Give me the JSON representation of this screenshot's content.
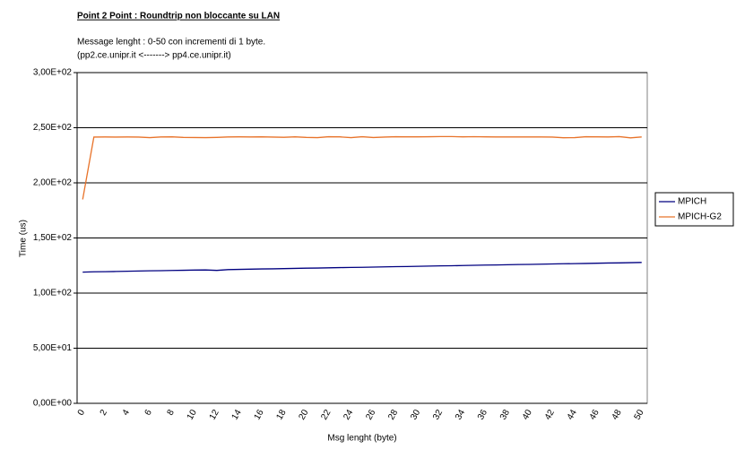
{
  "chart_data": {
    "type": "line",
    "title": "Point 2 Point  :  Roundtrip non bloccante su LAN",
    "subtitle": [
      "Message lenght :  0-50 con incrementi di 1 byte.",
      "(pp2.ce.unipr.it    <------->  pp4.ce.unipr.it)"
    ],
    "x_label": "Msg lenght (byte)",
    "y_label": "Time (us)",
    "categories": [
      0,
      null,
      2,
      null,
      4,
      null,
      6,
      null,
      8,
      null,
      10,
      null,
      12,
      null,
      14,
      null,
      16,
      null,
      18,
      null,
      20,
      null,
      22,
      null,
      24,
      null,
      26,
      null,
      28,
      null,
      30,
      null,
      32,
      null,
      34,
      null,
      36,
      null,
      38,
      null,
      40,
      null,
      42,
      null,
      44,
      null,
      46,
      null,
      48,
      null,
      50
    ],
    "series": [
      {
        "name": "MPICH",
        "color": "#000080",
        "values": [
          119.0,
          119.3,
          119.4,
          119.6,
          119.8,
          120.0,
          120.2,
          120.3,
          120.5,
          120.7,
          120.9,
          121.0,
          120.6,
          121.3,
          121.5,
          121.7,
          121.9,
          122.0,
          122.2,
          122.4,
          122.6,
          122.7,
          122.9,
          123.1,
          123.3,
          123.4,
          123.6,
          123.8,
          124.0,
          124.1,
          124.3,
          124.5,
          124.7,
          124.8,
          125.0,
          125.2,
          125.4,
          125.5,
          125.7,
          125.9,
          126.0,
          126.2,
          126.4,
          126.6,
          126.7,
          126.9,
          127.1,
          127.3,
          127.4,
          127.6,
          127.8
        ]
      },
      {
        "name": "MPICH-G2",
        "color": "#e8732a",
        "values": [
          185.0,
          241.5,
          241.6,
          241.5,
          241.6,
          241.5,
          241.0,
          241.6,
          241.7,
          241.2,
          241.1,
          241.0,
          241.2,
          241.6,
          241.7,
          241.6,
          241.7,
          241.5,
          241.3,
          241.7,
          241.2,
          241.0,
          241.8,
          241.7,
          241.0,
          241.8,
          241.1,
          241.5,
          241.8,
          241.7,
          241.7,
          241.8,
          242.0,
          242.0,
          241.7,
          241.9,
          241.7,
          241.6,
          241.6,
          241.6,
          241.6,
          241.6,
          241.5,
          240.9,
          241.0,
          241.8,
          241.7,
          241.6,
          241.9,
          240.8,
          241.6
        ]
      }
    ],
    "ylim": [
      0,
      300
    ],
    "yticks": [
      {
        "value": 0,
        "label": "0,00E+00"
      },
      {
        "value": 50,
        "label": "5,00E+01"
      },
      {
        "value": 100,
        "label": "1,00E+02"
      },
      {
        "value": 150,
        "label": "1,50E+02"
      },
      {
        "value": 200,
        "label": "2,00E+02"
      },
      {
        "value": 250,
        "label": "2,50E+02"
      },
      {
        "value": 300,
        "label": "3,00E+02"
      }
    ],
    "grid": true,
    "legend": "right"
  }
}
